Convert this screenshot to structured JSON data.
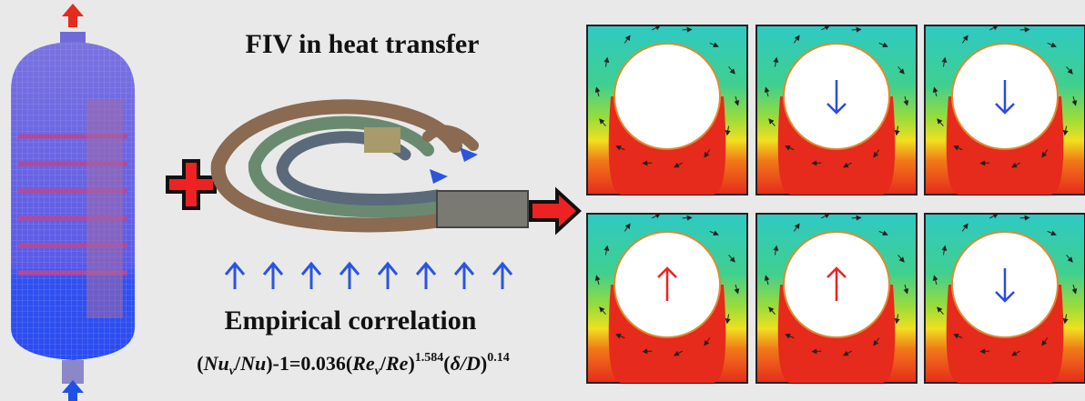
{
  "header": {
    "title": "FIV in heat transfer"
  },
  "correlation": {
    "title": "Empirical correlation",
    "formula": [
      "(",
      "Nu",
      "v",
      "/",
      "Nu",
      ")-1=0.036(",
      "Re",
      "v",
      "/",
      "Re",
      ")",
      "1.584",
      "(",
      "δ/D",
      ")",
      "0.14"
    ]
  }
}
